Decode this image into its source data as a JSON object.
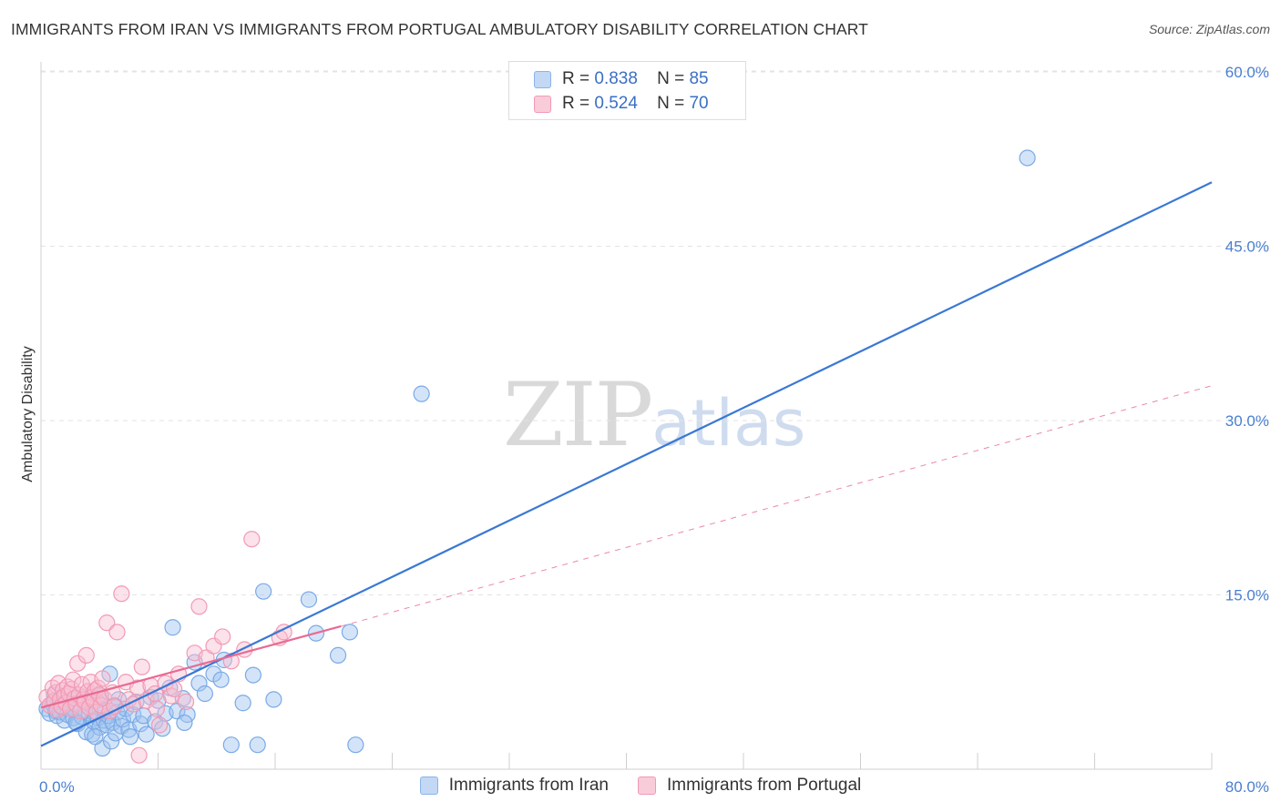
{
  "header": {
    "title": "IMMIGRANTS FROM IRAN VS IMMIGRANTS FROM PORTUGAL AMBULATORY DISABILITY CORRELATION CHART",
    "source": "Source: ZipAtlas.com"
  },
  "watermark": {
    "zip": "ZIP",
    "atlas": "atlas"
  },
  "legend": {
    "rows": [
      {
        "r_label": "R =",
        "r_value": "0.838",
        "n_label": "N =",
        "n_value": "85",
        "color": "#8ab4e8",
        "fill": "#c3d8f4"
      },
      {
        "r_label": "R =",
        "r_value": "0.524",
        "n_label": "N =",
        "n_value": "70",
        "color": "#f19ab5",
        "fill": "#f9ccda"
      }
    ]
  },
  "bottom_legend": {
    "items": [
      {
        "label": "Immigrants from Iran",
        "color": "#8ab4e8",
        "fill": "#c3d8f4"
      },
      {
        "label": "Immigrants from Portugal",
        "color": "#f19ab5",
        "fill": "#f9ccda"
      }
    ]
  },
  "chart_data": {
    "type": "scatter",
    "title": "IMMIGRANTS FROM IRAN VS IMMIGRANTS FROM PORTUGAL AMBULATORY DISABILITY CORRELATION CHART",
    "xlabel": "",
    "ylabel": "Ambulatory Disability",
    "xlim": [
      0,
      80
    ],
    "ylim": [
      0,
      62
    ],
    "x_tick_labels": [
      "0.0%",
      "80.0%"
    ],
    "y_ticks": [
      15,
      30,
      45,
      60
    ],
    "y_tick_labels": [
      "15.0%",
      "30.0%",
      "45.0%",
      "60.0%"
    ],
    "grid": true,
    "legend_position": "top-center",
    "series": [
      {
        "name": "Immigrants from Iran",
        "color": "#3a78d4",
        "marker_edge": "#7aaae6",
        "marker_fill": "rgba(160,195,240,0.45)",
        "trend": {
          "x": [
            0,
            80
          ],
          "y": [
            2.0,
            50.5
          ],
          "style": "solid"
        },
        "points": [
          [
            0.4,
            5.2
          ],
          [
            0.6,
            4.8
          ],
          [
            0.8,
            5.6
          ],
          [
            0.9,
            6.4
          ],
          [
            1.0,
            5.0
          ],
          [
            1.1,
            4.6
          ],
          [
            1.2,
            5.8
          ],
          [
            1.3,
            4.9
          ],
          [
            1.4,
            6.1
          ],
          [
            1.5,
            5.3
          ],
          [
            1.6,
            4.2
          ],
          [
            1.7,
            5.9
          ],
          [
            1.8,
            4.7
          ],
          [
            2.0,
            5.4
          ],
          [
            2.1,
            6.0
          ],
          [
            2.2,
            4.4
          ],
          [
            2.3,
            5.1
          ],
          [
            2.5,
            3.9
          ],
          [
            2.6,
            5.7
          ],
          [
            2.8,
            4.5
          ],
          [
            2.9,
            6.2
          ],
          [
            3.0,
            5.0
          ],
          [
            3.1,
            3.2
          ],
          [
            3.3,
            4.8
          ],
          [
            3.4,
            5.5
          ],
          [
            3.5,
            3.0
          ],
          [
            3.6,
            4.1
          ],
          [
            3.8,
            5.9
          ],
          [
            3.9,
            4.4
          ],
          [
            4.0,
            3.6
          ],
          [
            4.1,
            6.3
          ],
          [
            4.2,
            1.8
          ],
          [
            4.3,
            4.2
          ],
          [
            4.4,
            5.0
          ],
          [
            4.5,
            3.8
          ],
          [
            4.6,
            4.6
          ],
          [
            4.7,
            8.2
          ],
          [
            4.8,
            2.4
          ],
          [
            4.9,
            4.0
          ],
          [
            5.0,
            5.5
          ],
          [
            5.1,
            3.1
          ],
          [
            5.2,
            4.9
          ],
          [
            5.3,
            6.0
          ],
          [
            5.5,
            3.7
          ],
          [
            5.6,
            4.3
          ],
          [
            5.8,
            5.2
          ],
          [
            6.0,
            3.4
          ],
          [
            6.3,
            4.7
          ],
          [
            6.5,
            5.8
          ],
          [
            6.8,
            3.9
          ],
          [
            7.0,
            4.6
          ],
          [
            7.2,
            3.0
          ],
          [
            7.5,
            6.2
          ],
          [
            7.8,
            4.1
          ],
          [
            8.0,
            5.9
          ],
          [
            8.3,
            3.5
          ],
          [
            8.5,
            4.8
          ],
          [
            8.8,
            7.0
          ],
          [
            9.0,
            12.2
          ],
          [
            9.3,
            5.0
          ],
          [
            9.7,
            6.1
          ],
          [
            10.0,
            4.7
          ],
          [
            10.5,
            9.2
          ],
          [
            10.8,
            7.4
          ],
          [
            11.2,
            6.5
          ],
          [
            11.8,
            8.2
          ],
          [
            12.3,
            7.7
          ],
          [
            12.5,
            9.4
          ],
          [
            13.0,
            2.1
          ],
          [
            13.8,
            5.7
          ],
          [
            14.5,
            8.1
          ],
          [
            15.2,
            15.3
          ],
          [
            15.9,
            6.0
          ],
          [
            18.3,
            14.6
          ],
          [
            18.8,
            11.7
          ],
          [
            20.3,
            9.8
          ],
          [
            21.1,
            11.8
          ],
          [
            21.5,
            2.1
          ],
          [
            26.0,
            32.3
          ],
          [
            67.4,
            52.6
          ],
          [
            14.8,
            2.1
          ],
          [
            3.7,
            2.8
          ],
          [
            2.4,
            4.0
          ],
          [
            6.1,
            2.8
          ],
          [
            9.8,
            4.0
          ]
        ]
      },
      {
        "name": "Immigrants from Portugal",
        "color": "#e86a93",
        "marker_edge": "#f19ab5",
        "marker_fill": "rgba(249,190,208,0.45)",
        "trend": {
          "x": [
            0,
            20.5
          ],
          "y": [
            5.3,
            12.3
          ],
          "style": "solid"
        },
        "trend_extension": {
          "x": [
            20.5,
            80
          ],
          "y": [
            12.3,
            33.0
          ],
          "style": "dashed"
        },
        "points": [
          [
            0.4,
            6.2
          ],
          [
            0.6,
            5.5
          ],
          [
            0.8,
            7.0
          ],
          [
            0.9,
            5.9
          ],
          [
            1.0,
            6.6
          ],
          [
            1.1,
            5.1
          ],
          [
            1.2,
            7.4
          ],
          [
            1.3,
            6.0
          ],
          [
            1.4,
            5.4
          ],
          [
            1.5,
            6.8
          ],
          [
            1.6,
            6.3
          ],
          [
            1.7,
            5.7
          ],
          [
            1.8,
            7.1
          ],
          [
            1.9,
            6.5
          ],
          [
            2.0,
            5.2
          ],
          [
            2.1,
            6.9
          ],
          [
            2.2,
            7.7
          ],
          [
            2.3,
            6.1
          ],
          [
            2.4,
            5.6
          ],
          [
            2.5,
            9.1
          ],
          [
            2.6,
            6.4
          ],
          [
            2.7,
            5.0
          ],
          [
            2.8,
            7.3
          ],
          [
            2.9,
            6.0
          ],
          [
            3.0,
            5.8
          ],
          [
            3.1,
            9.8
          ],
          [
            3.2,
            6.7
          ],
          [
            3.3,
            5.3
          ],
          [
            3.4,
            7.5
          ],
          [
            3.5,
            6.2
          ],
          [
            3.6,
            5.9
          ],
          [
            3.7,
            6.8
          ],
          [
            3.8,
            4.9
          ],
          [
            3.9,
            7.0
          ],
          [
            4.0,
            6.4
          ],
          [
            4.1,
            5.5
          ],
          [
            4.2,
            7.8
          ],
          [
            4.3,
            6.1
          ],
          [
            4.5,
            12.6
          ],
          [
            4.7,
            5.0
          ],
          [
            4.9,
            6.6
          ],
          [
            5.2,
            11.8
          ],
          [
            5.5,
            15.1
          ],
          [
            5.8,
            7.5
          ],
          [
            6.0,
            6.0
          ],
          [
            6.3,
            5.6
          ],
          [
            6.6,
            7.0
          ],
          [
            6.9,
            8.8
          ],
          [
            7.2,
            5.9
          ],
          [
            7.5,
            7.2
          ],
          [
            7.8,
            6.5
          ],
          [
            8.1,
            3.8
          ],
          [
            8.5,
            7.4
          ],
          [
            8.9,
            6.3
          ],
          [
            9.4,
            8.2
          ],
          [
            9.9,
            5.8
          ],
          [
            10.5,
            10.0
          ],
          [
            10.8,
            14.0
          ],
          [
            11.3,
            9.6
          ],
          [
            11.8,
            10.6
          ],
          [
            12.4,
            11.4
          ],
          [
            13.0,
            9.3
          ],
          [
            13.9,
            10.3
          ],
          [
            14.4,
            19.8
          ],
          [
            16.3,
            11.3
          ],
          [
            16.6,
            11.8
          ],
          [
            6.7,
            1.2
          ],
          [
            7.9,
            5.2
          ],
          [
            9.1,
            6.9
          ],
          [
            5.0,
            5.4
          ]
        ]
      }
    ]
  }
}
